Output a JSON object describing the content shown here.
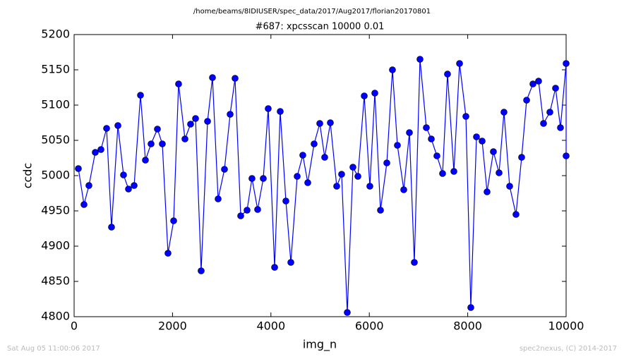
{
  "chart_data": {
    "type": "line",
    "suptitle": "/home/beams/8IDIUSER/spec_data/2017/Aug2017/florian20170801",
    "title": "#687: xpcsscan 10000 0.01",
    "xlabel": "img_n",
    "ylabel": "ccdc",
    "footer_left": "Sat Aug 05 11:00:06 2017",
    "footer_right": "spec2nexus, (C) 2014-2017",
    "xlim": [
      0,
      10000
    ],
    "xticks": [
      0,
      2000,
      4000,
      6000,
      8000,
      10000
    ],
    "ylim": [
      4800,
      5200
    ],
    "yticks": [
      4800,
      4850,
      4900,
      4950,
      5000,
      5050,
      5100,
      5150,
      5200
    ],
    "color": "#0000ff",
    "x": [
      86,
      201,
      301,
      430,
      545,
      660,
      760,
      890,
      1004,
      1105,
      1220,
      1349,
      1449,
      1564,
      1693,
      1793,
      1908,
      2023,
      2123,
      2253,
      2367,
      2468,
      2582,
      2712,
      2812,
      2927,
      3056,
      3171,
      3271,
      3386,
      3515,
      3615,
      3730,
      3845,
      3945,
      4075,
      4189,
      4304,
      4405,
      4534,
      4648,
      4749,
      4878,
      4993,
      5093,
      5208,
      5337,
      5437,
      5552,
      5667,
      5768,
      5897,
      6011,
      6112,
      6227,
      6356,
      6470,
      6571,
      6700,
      6815,
      6915,
      7030,
      7159,
      7260,
      7374,
      7489,
      7589,
      7719,
      7834,
      7963,
      8063,
      8178,
      8293,
      8393,
      8522,
      8637,
      8737,
      8852,
      8981,
      9096,
      9197,
      9326,
      9440,
      9541,
      9670,
      9785,
      9885,
      10000,
      10000
    ],
    "values": [
      5010,
      4959,
      4986,
      5033,
      5037,
      5067,
      4927,
      5071,
      5001,
      4981,
      4986,
      5114,
      5022,
      5045,
      5066,
      5045,
      4890,
      4936,
      5130,
      5052,
      5073,
      5081,
      4865,
      5077,
      5139,
      4967,
      5009,
      5087,
      5138,
      4943,
      4951,
      4996,
      4952,
      4996,
      5095,
      4870,
      5091,
      4964,
      4877,
      4999,
      5029,
      4990,
      5045,
      5074,
      5026,
      5075,
      4985,
      5002,
      4806,
      5012,
      4999,
      5113,
      4985,
      5117,
      4951,
      5018,
      5150,
      5043,
      4980,
      5061,
      4877,
      5165,
      5068,
      5052,
      5028,
      5003,
      5144,
      5006,
      5159,
      5084,
      4813,
      5055,
      5049,
      4977,
      5034,
      5004,
      5090,
      4985,
      4945,
      5026,
      5107,
      5130,
      5134,
      5074,
      5090,
      5124,
      5068,
      5159,
      5028
    ]
  }
}
